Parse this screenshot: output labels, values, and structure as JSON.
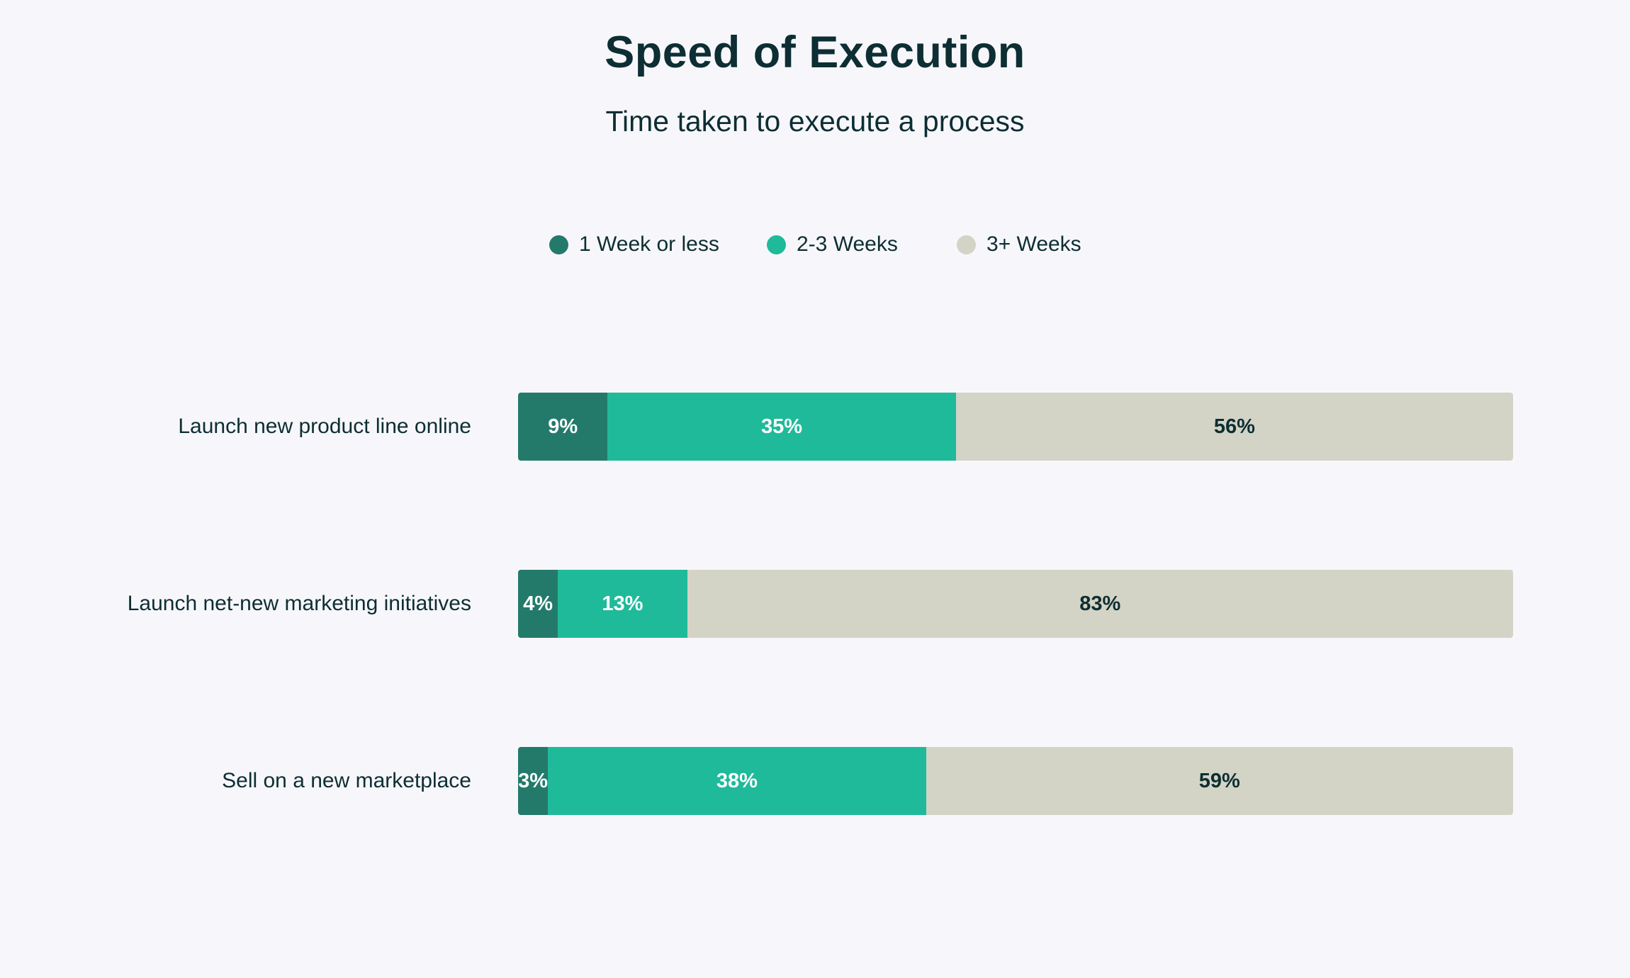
{
  "chart_data": {
    "type": "bar",
    "orientation": "horizontal",
    "stacked": true,
    "title": "Speed of Execution",
    "subtitle": "Time taken to execute a process",
    "legend_position": "top-center",
    "categories": [
      "Launch new product line online",
      "Launch net-new marketing initiatives",
      "Sell on a new marketplace"
    ],
    "series": [
      {
        "name": "1 Week or less",
        "color": "#237a6a",
        "label_color": "#ffffff",
        "values": [
          9,
          4,
          3
        ],
        "labels": [
          "9%",
          "4%",
          "3%"
        ]
      },
      {
        "name": "2-3 Weeks",
        "color": "#1fba9a",
        "label_color": "#ffffff",
        "values": [
          35,
          13,
          38
        ],
        "labels": [
          "35%",
          "13%",
          "38%"
        ]
      },
      {
        "name": "3+ Weeks",
        "color": "#d3d4c5",
        "label_color": "#0d2e33",
        "values": [
          56,
          83,
          59
        ],
        "labels": [
          "56%",
          "83%",
          "59%"
        ]
      }
    ],
    "xlim": [
      0,
      100
    ],
    "unit": "%",
    "grid": false
  }
}
